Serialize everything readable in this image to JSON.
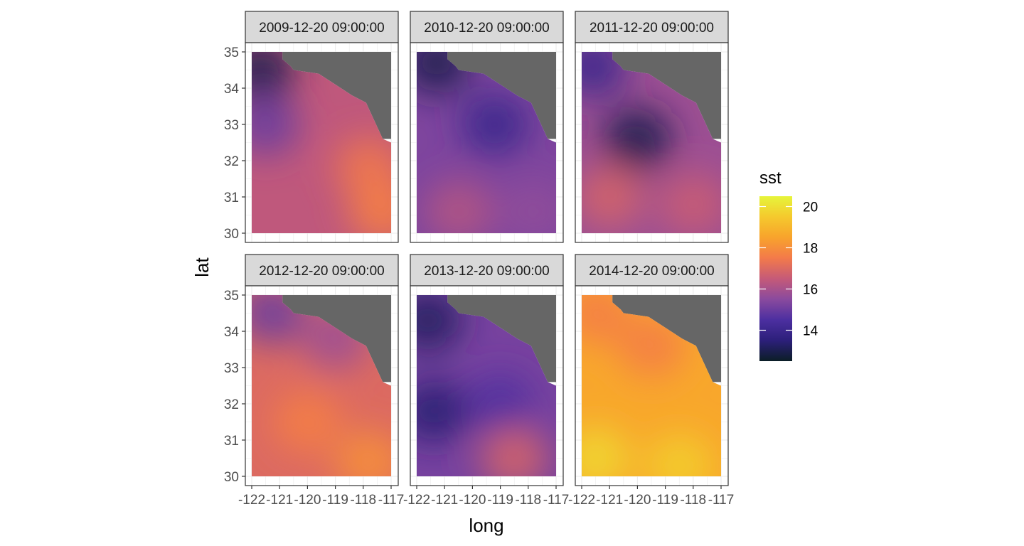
{
  "chart_data": {
    "type": "heatmap",
    "title": "",
    "xlabel": "long",
    "ylabel": "lat",
    "xlim": [
      -122,
      -117
    ],
    "ylim": [
      30,
      35
    ],
    "x_ticks": [
      -122,
      -121,
      -120,
      -119,
      -118,
      -117
    ],
    "x_tick_labels": [
      "-122",
      "-121",
      "-120",
      "-119",
      "-118",
      "-117"
    ],
    "y_ticks": [
      30,
      31,
      32,
      33,
      34,
      35
    ],
    "y_tick_labels": [
      "30",
      "31",
      "32",
      "33",
      "34",
      "35"
    ],
    "grid": true,
    "land_color": "#666666",
    "colorbar": {
      "title": "sst",
      "range": [
        12.5,
        20.5
      ],
      "ticks": [
        14,
        16,
        18,
        20
      ],
      "tick_labels": [
        "14",
        "16",
        "18",
        "20"
      ],
      "colors": [
        "#0b1e26",
        "#2c1f7a",
        "#4c2fa0",
        "#8a4a9e",
        "#c55a78",
        "#f37a4a",
        "#f8a32c",
        "#f5c92d",
        "#e6f53b"
      ],
      "legend_position": "right"
    },
    "facets": [
      {
        "label": "2009-12-20 09:00:00",
        "mean_sst": 16.4,
        "features": [
          {
            "lon": -121.7,
            "lat": 34.5,
            "sst": 13.0
          },
          {
            "lon": -121.5,
            "lat": 33.0,
            "sst": 15.0
          },
          {
            "lon": -117.8,
            "lat": 31.8,
            "sst": 17.4
          },
          {
            "lon": -117.3,
            "lat": 30.6,
            "sst": 17.6
          }
        ]
      },
      {
        "label": "2010-12-20 09:00:00",
        "mean_sst": 15.3,
        "features": [
          {
            "lon": -121.3,
            "lat": 34.7,
            "sst": 13.0
          },
          {
            "lon": -119.2,
            "lat": 33.0,
            "sst": 14.0
          },
          {
            "lon": -120.5,
            "lat": 30.6,
            "sst": 16.2
          },
          {
            "lon": -117.8,
            "lat": 30.6,
            "sst": 15.6
          }
        ]
      },
      {
        "label": "2011-12-20 09:00:00",
        "mean_sst": 15.8,
        "features": [
          {
            "lon": -121.6,
            "lat": 34.6,
            "sst": 14.0
          },
          {
            "lon": -120.0,
            "lat": 32.6,
            "sst": 13.0
          },
          {
            "lon": -121.0,
            "lat": 31.0,
            "sst": 16.8
          },
          {
            "lon": -118.0,
            "lat": 30.8,
            "sst": 16.6
          }
        ]
      },
      {
        "label": "2012-12-20 09:00:00",
        "mean_sst": 17.0,
        "features": [
          {
            "lon": -121.3,
            "lat": 34.5,
            "sst": 15.0
          },
          {
            "lon": -119.0,
            "lat": 33.8,
            "sst": 15.8
          },
          {
            "lon": -120.0,
            "lat": 31.5,
            "sst": 17.6
          },
          {
            "lon": -117.8,
            "lat": 30.4,
            "sst": 18.0
          }
        ]
      },
      {
        "label": "2013-12-20 09:00:00",
        "mean_sst": 15.2,
        "features": [
          {
            "lon": -121.6,
            "lat": 34.3,
            "sst": 13.2
          },
          {
            "lon": -121.4,
            "lat": 31.8,
            "sst": 13.4
          },
          {
            "lon": -119.0,
            "lat": 32.0,
            "sst": 14.6
          },
          {
            "lon": -118.5,
            "lat": 30.5,
            "sst": 16.8
          }
        ]
      },
      {
        "label": "2014-12-20 09:00:00",
        "mean_sst": 18.6,
        "features": [
          {
            "lon": -121.5,
            "lat": 34.5,
            "sst": 17.6
          },
          {
            "lon": -119.5,
            "lat": 33.6,
            "sst": 17.6
          },
          {
            "lon": -121.5,
            "lat": 30.5,
            "sst": 19.8
          },
          {
            "lon": -118.5,
            "lat": 30.3,
            "sst": 19.6
          }
        ]
      }
    ]
  }
}
